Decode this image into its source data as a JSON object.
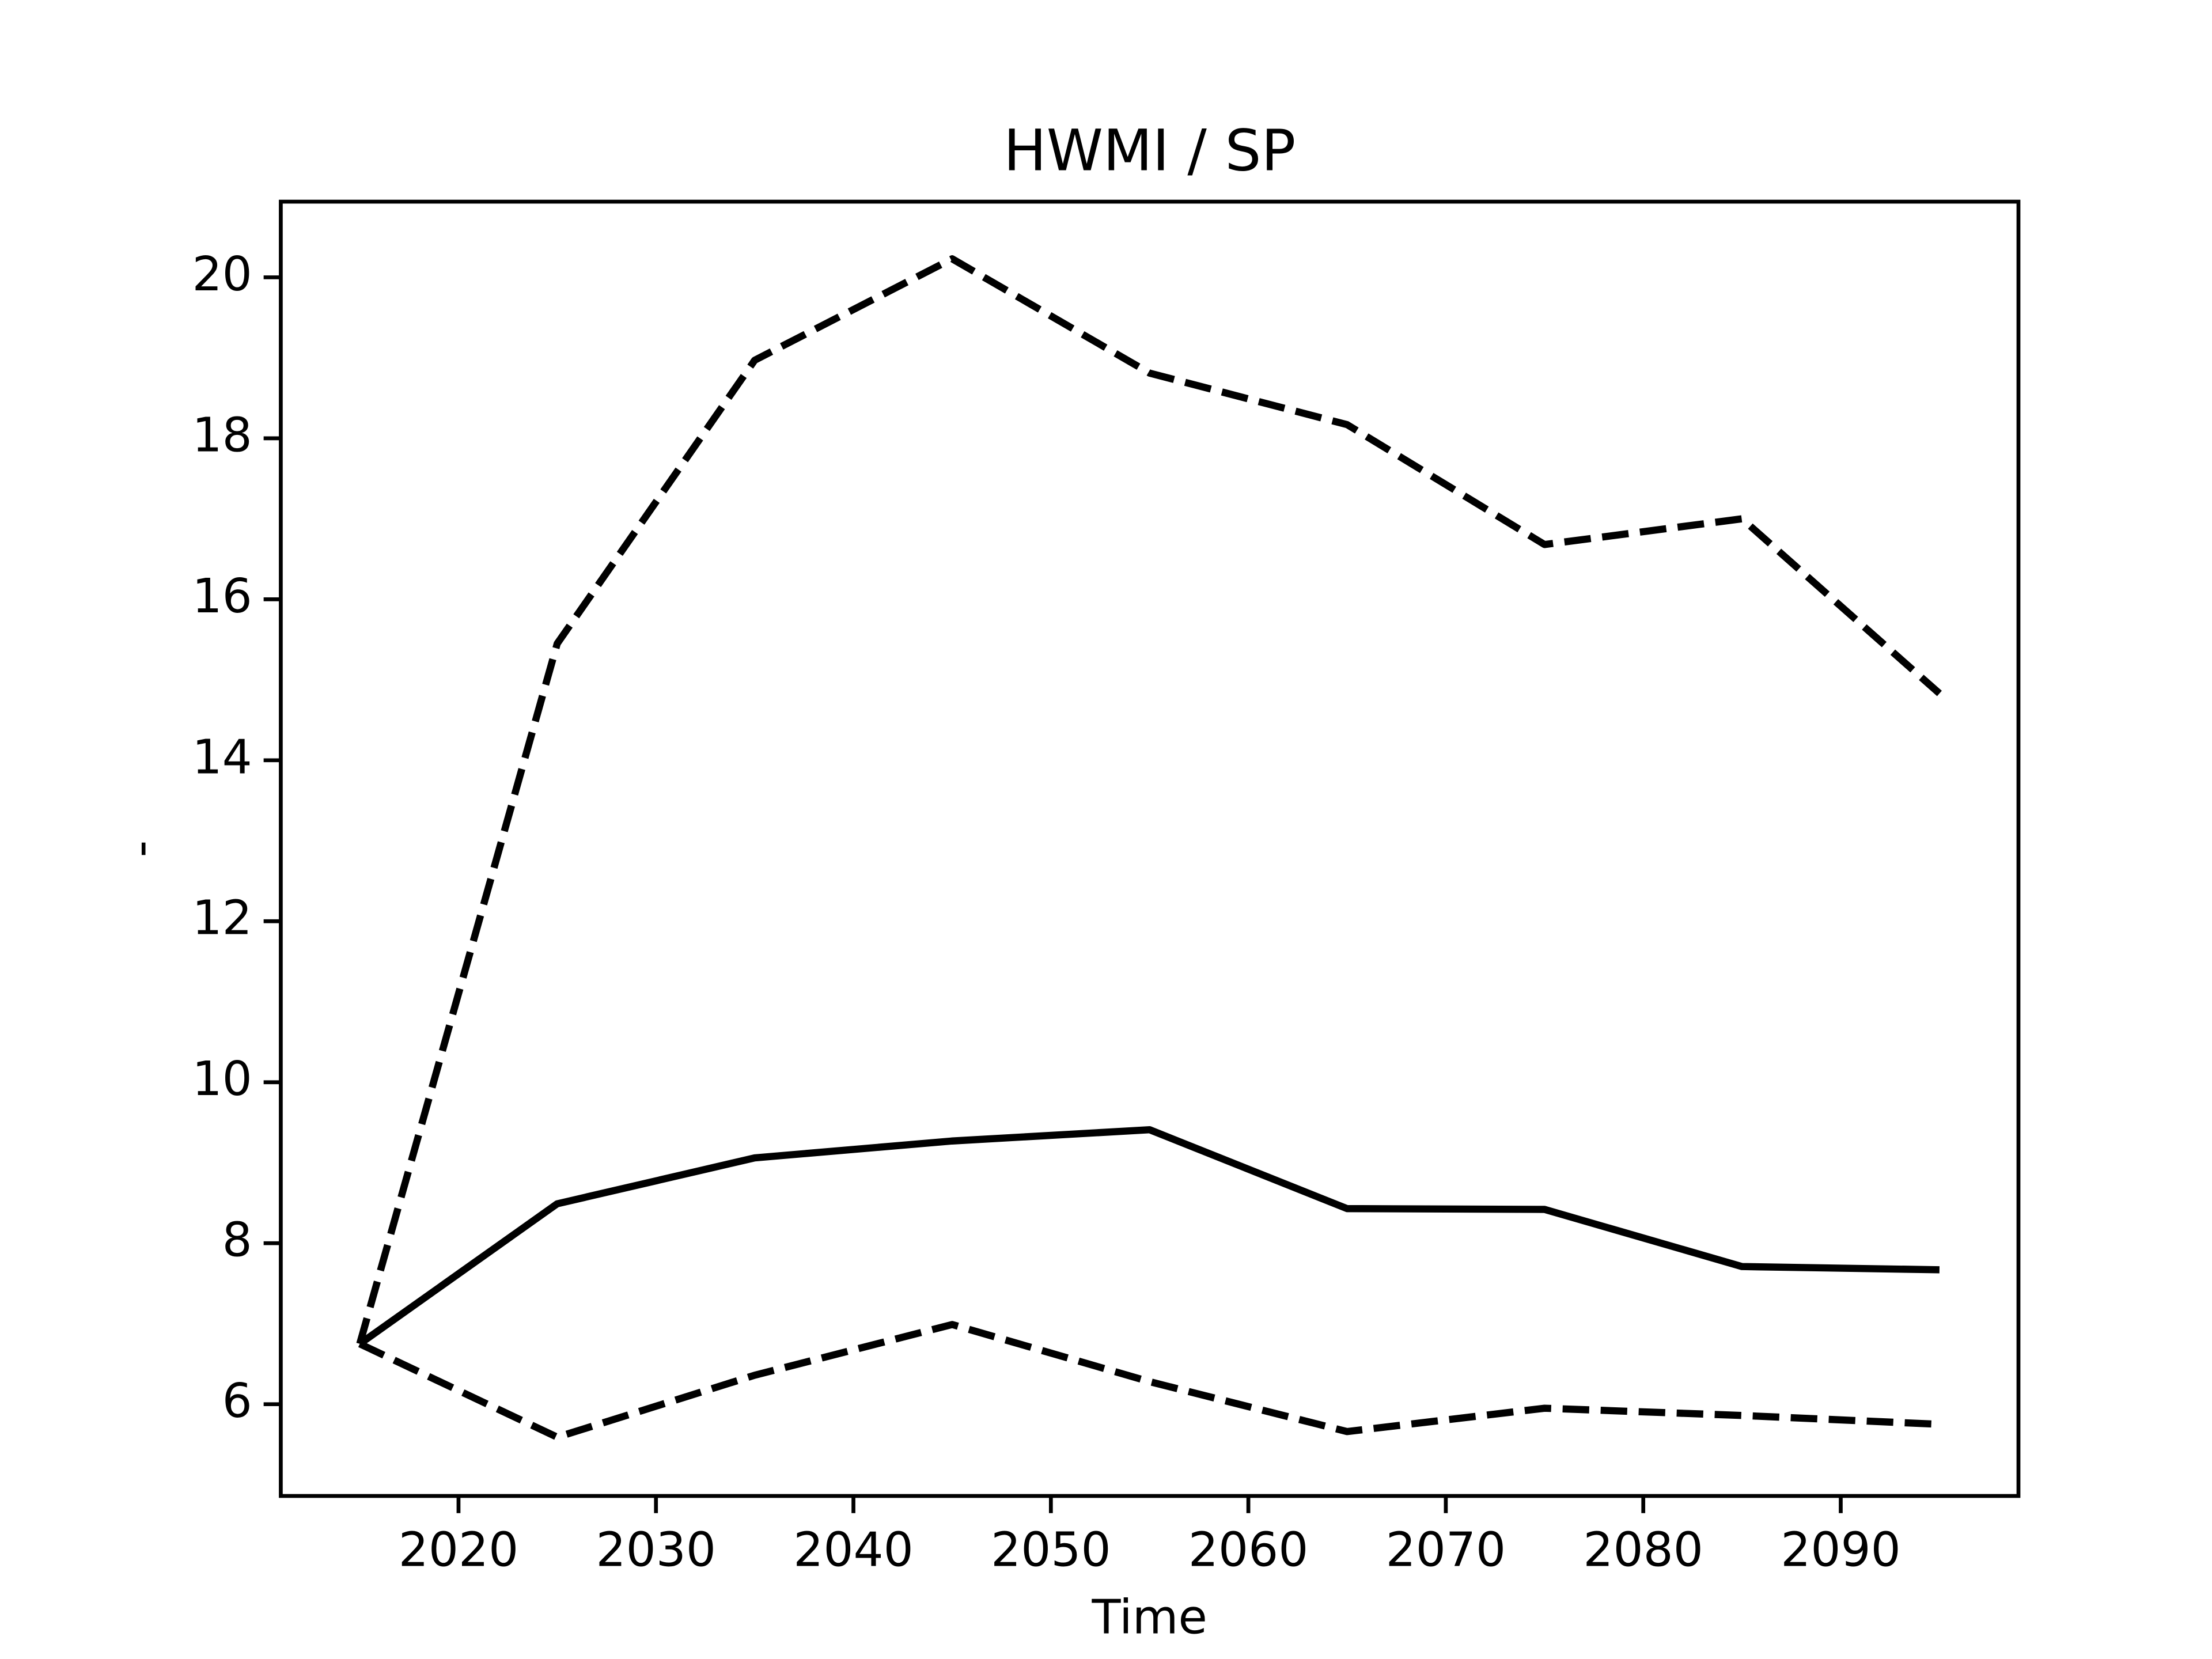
{
  "chart_data": {
    "type": "line",
    "title": "HWMI / SP",
    "x_label": "Time",
    "y_label": "-",
    "x": [
      2015,
      2025,
      2035,
      2045,
      2055,
      2065,
      2075,
      2085,
      2095
    ],
    "series": [
      {
        "color": "#000000",
        "linestyle": "solid",
        "values": [
          6.75,
          8.49,
          9.06,
          9.27,
          9.41,
          8.43,
          8.42,
          7.71,
          7.67
        ]
      },
      {
        "color": "#000000",
        "linestyle": "dashed",
        "values": [
          6.75,
          15.45,
          18.97,
          20.23,
          18.81,
          18.17,
          16.68,
          17.0,
          14.83
        ]
      },
      {
        "color": "#000000",
        "linestyle": "dashed",
        "values": [
          6.75,
          5.59,
          6.36,
          6.99,
          6.28,
          5.66,
          5.95,
          5.86,
          5.75
        ]
      }
    ],
    "xlim": [
      2011,
      2099
    ],
    "xticks": [
      2020,
      2030,
      2040,
      2050,
      2060,
      2070,
      2080,
      2090
    ],
    "ylim": [
      4.86,
      20.94
    ],
    "yticks": [
      6,
      8,
      10,
      12,
      14,
      16,
      18,
      20
    ],
    "grid": false
  }
}
